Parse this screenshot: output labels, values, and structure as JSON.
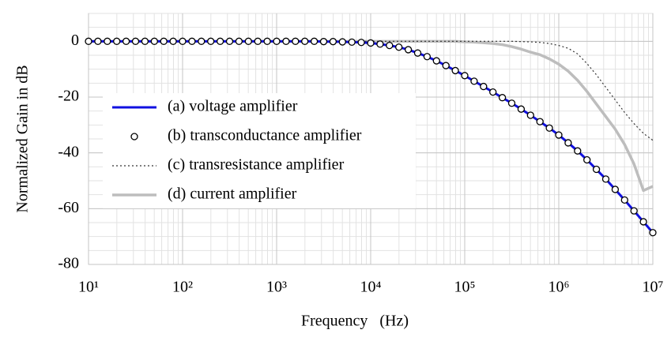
{
  "chart_data": {
    "type": "line",
    "xscale": "log",
    "grid": true,
    "legend": "center left",
    "xlabel": "Frequency   (Hz)",
    "ylabel": "Normalized Gain in dB",
    "xlim": [
      10,
      10000000
    ],
    "ylim": [
      -80,
      10
    ],
    "xticks": [
      {
        "value": 10,
        "label": "10¹"
      },
      {
        "value": 100,
        "label": "10²"
      },
      {
        "value": 1000,
        "label": "10³"
      },
      {
        "value": 10000,
        "label": "10⁴"
      },
      {
        "value": 100000,
        "label": "10⁵"
      },
      {
        "value": 1000000,
        "label": "10⁶"
      },
      {
        "value": 10000000,
        "label": "10⁷"
      }
    ],
    "yticks": [
      0,
      -20,
      -40,
      -60,
      -80
    ],
    "x": [
      10,
      12.59,
      15.85,
      19.95,
      25.12,
      31.62,
      39.81,
      50.12,
      63.1,
      79.43,
      100,
      125.9,
      158.5,
      199.5,
      251.2,
      316.2,
      398.1,
      501.2,
      631,
      794.3,
      1000,
      1259,
      1585,
      1995,
      2512,
      3162,
      3981,
      5012,
      6310,
      7943,
      10000,
      12590,
      15850,
      19950,
      25120,
      31620,
      39810,
      50120,
      63100,
      79430,
      100000,
      125900,
      158500,
      199500,
      251200,
      316200,
      398100,
      501200,
      631000,
      794300,
      1000000,
      1259000,
      1585000,
      1995000,
      2512000,
      3162000,
      3981000,
      5012000,
      6310000,
      7943000,
      10000000
    ],
    "series": [
      {
        "name": "(a) voltage amplifier",
        "color": "#1010e0",
        "line_width": 3,
        "dash": null,
        "marker": null,
        "values": [
          0,
          0,
          0,
          0,
          0,
          0,
          0,
          0,
          0,
          0,
          0,
          0,
          0,
          0,
          0,
          0,
          0,
          0,
          0,
          0,
          0,
          0,
          0,
          0,
          0,
          -0.1,
          -0.1,
          -0.2,
          -0.3,
          -0.4,
          -0.6,
          -1.0,
          -1.5,
          -2.1,
          -3.0,
          -4.2,
          -5.5,
          -7.0,
          -8.7,
          -10.5,
          -12.3,
          -14.3,
          -16.2,
          -18.2,
          -20.2,
          -22.2,
          -24.3,
          -26.5,
          -28.8,
          -31.1,
          -33.6,
          -36.4,
          -39.3,
          -42.5,
          -45.9,
          -49.4,
          -53.1,
          -56.9,
          -60.8,
          -64.7,
          -68.6
        ]
      },
      {
        "name": "(b) transconductance amplifier",
        "color": "#000000",
        "line_width": 0,
        "dash": null,
        "marker": "circle",
        "values": [
          0,
          0,
          0,
          0,
          0,
          0,
          0,
          0,
          0,
          0,
          0,
          0,
          0,
          0,
          0,
          0,
          0,
          0,
          0,
          0,
          0,
          0,
          0,
          0,
          0,
          -0.1,
          -0.1,
          -0.2,
          -0.3,
          -0.4,
          -0.6,
          -1.0,
          -1.5,
          -2.1,
          -3.0,
          -4.2,
          -5.5,
          -7.0,
          -8.7,
          -10.5,
          -12.3,
          -14.3,
          -16.2,
          -18.2,
          -20.2,
          -22.2,
          -24.3,
          -26.5,
          -28.8,
          -31.1,
          -33.6,
          -36.4,
          -39.3,
          -42.5,
          -45.9,
          -49.4,
          -53.1,
          -56.9,
          -60.8,
          -64.7,
          -68.6
        ]
      },
      {
        "name": "(c) transresistance amplifier",
        "color": "#333333",
        "line_width": 1.2,
        "dash": "2 3",
        "marker": null,
        "values": [
          0,
          0,
          0,
          0,
          0,
          0,
          0,
          0,
          0,
          0,
          0,
          0,
          0,
          0,
          0,
          0,
          0,
          0,
          0,
          0,
          0,
          0,
          0,
          0,
          0,
          0,
          0,
          0,
          0,
          0,
          0,
          0,
          0,
          0,
          0,
          0,
          0,
          0,
          0,
          0,
          0,
          0,
          0,
          0,
          0,
          0,
          -0.1,
          -0.2,
          -0.4,
          -0.8,
          -1.5,
          -2.5,
          -4.5,
          -8,
          -12,
          -16.5,
          -21,
          -25.5,
          -29.5,
          -33,
          -35.5
        ]
      },
      {
        "name": "(d) current amplifier",
        "color": "#bdbdbd",
        "line_width": 3.5,
        "dash": null,
        "marker": null,
        "values": [
          0,
          0,
          0,
          0,
          0,
          0,
          0,
          0,
          0,
          0,
          0,
          0,
          0,
          0,
          0,
          0,
          0,
          0,
          0,
          0,
          0,
          0,
          0,
          0,
          0,
          0,
          0,
          0,
          0,
          0,
          0,
          0,
          0,
          0,
          0,
          0,
          0,
          0,
          0,
          0,
          -0.2,
          -0.3,
          -0.5,
          -0.8,
          -1.2,
          -1.9,
          -2.8,
          -3.9,
          -4.8,
          -6.3,
          -8.2,
          -10.7,
          -14,
          -18,
          -22.5,
          -27,
          -31.5,
          -37,
          -44,
          -53.5,
          -52
        ]
      }
    ]
  }
}
